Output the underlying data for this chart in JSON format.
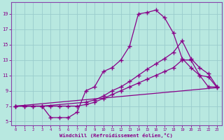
{
  "title": "",
  "xlabel": "Windchill (Refroidissement éolien,°C)",
  "bg_color": "#b8e8e0",
  "line_color": "#880088",
  "spine_color": "#8844aa",
  "xlim": [
    -0.5,
    23.5
  ],
  "ylim": [
    4.5,
    20.5
  ],
  "yticks": [
    5,
    7,
    9,
    11,
    13,
    15,
    17,
    19
  ],
  "xticks": [
    0,
    1,
    2,
    3,
    4,
    5,
    6,
    7,
    8,
    9,
    10,
    11,
    12,
    13,
    14,
    15,
    16,
    17,
    18,
    19,
    20,
    21,
    22,
    23
  ],
  "line1_x": [
    0,
    1,
    2,
    3,
    4,
    5,
    6,
    7,
    8,
    9,
    10,
    11,
    12,
    13,
    14,
    15,
    16,
    17,
    18,
    19,
    20,
    21,
    22,
    23
  ],
  "line1_y": [
    7.0,
    7.0,
    7.0,
    7.0,
    5.5,
    5.5,
    5.5,
    6.2,
    9.0,
    9.5,
    11.5,
    12.0,
    13.0,
    14.8,
    19.0,
    19.2,
    19.5,
    18.5,
    16.5,
    13.2,
    12.0,
    11.0,
    10.8,
    9.4
  ],
  "line2_x": [
    0,
    3,
    8,
    9,
    10,
    11,
    12,
    13,
    14,
    15,
    16,
    17,
    18,
    19,
    20,
    21,
    22,
    23
  ],
  "line2_y": [
    7.0,
    7.0,
    7.5,
    7.8,
    8.3,
    9.0,
    9.5,
    10.2,
    11.0,
    11.8,
    12.5,
    13.2,
    14.0,
    15.5,
    13.2,
    12.0,
    11.2,
    9.5
  ],
  "line3_x": [
    0,
    1,
    2,
    3,
    4,
    5,
    6,
    7,
    8,
    9,
    10,
    11,
    12,
    13,
    14,
    15,
    16,
    17,
    18,
    19,
    20,
    21,
    22,
    23
  ],
  "line3_y": [
    7.0,
    7.0,
    7.0,
    7.0,
    7.0,
    7.0,
    7.0,
    7.0,
    7.2,
    7.5,
    8.0,
    8.5,
    9.0,
    9.5,
    10.0,
    10.5,
    11.0,
    11.5,
    12.0,
    13.0,
    13.0,
    11.0,
    9.5,
    9.5
  ],
  "line4_x": [
    0,
    23
  ],
  "line4_y": [
    7.0,
    9.4
  ],
  "grid_color": "#99cccc"
}
